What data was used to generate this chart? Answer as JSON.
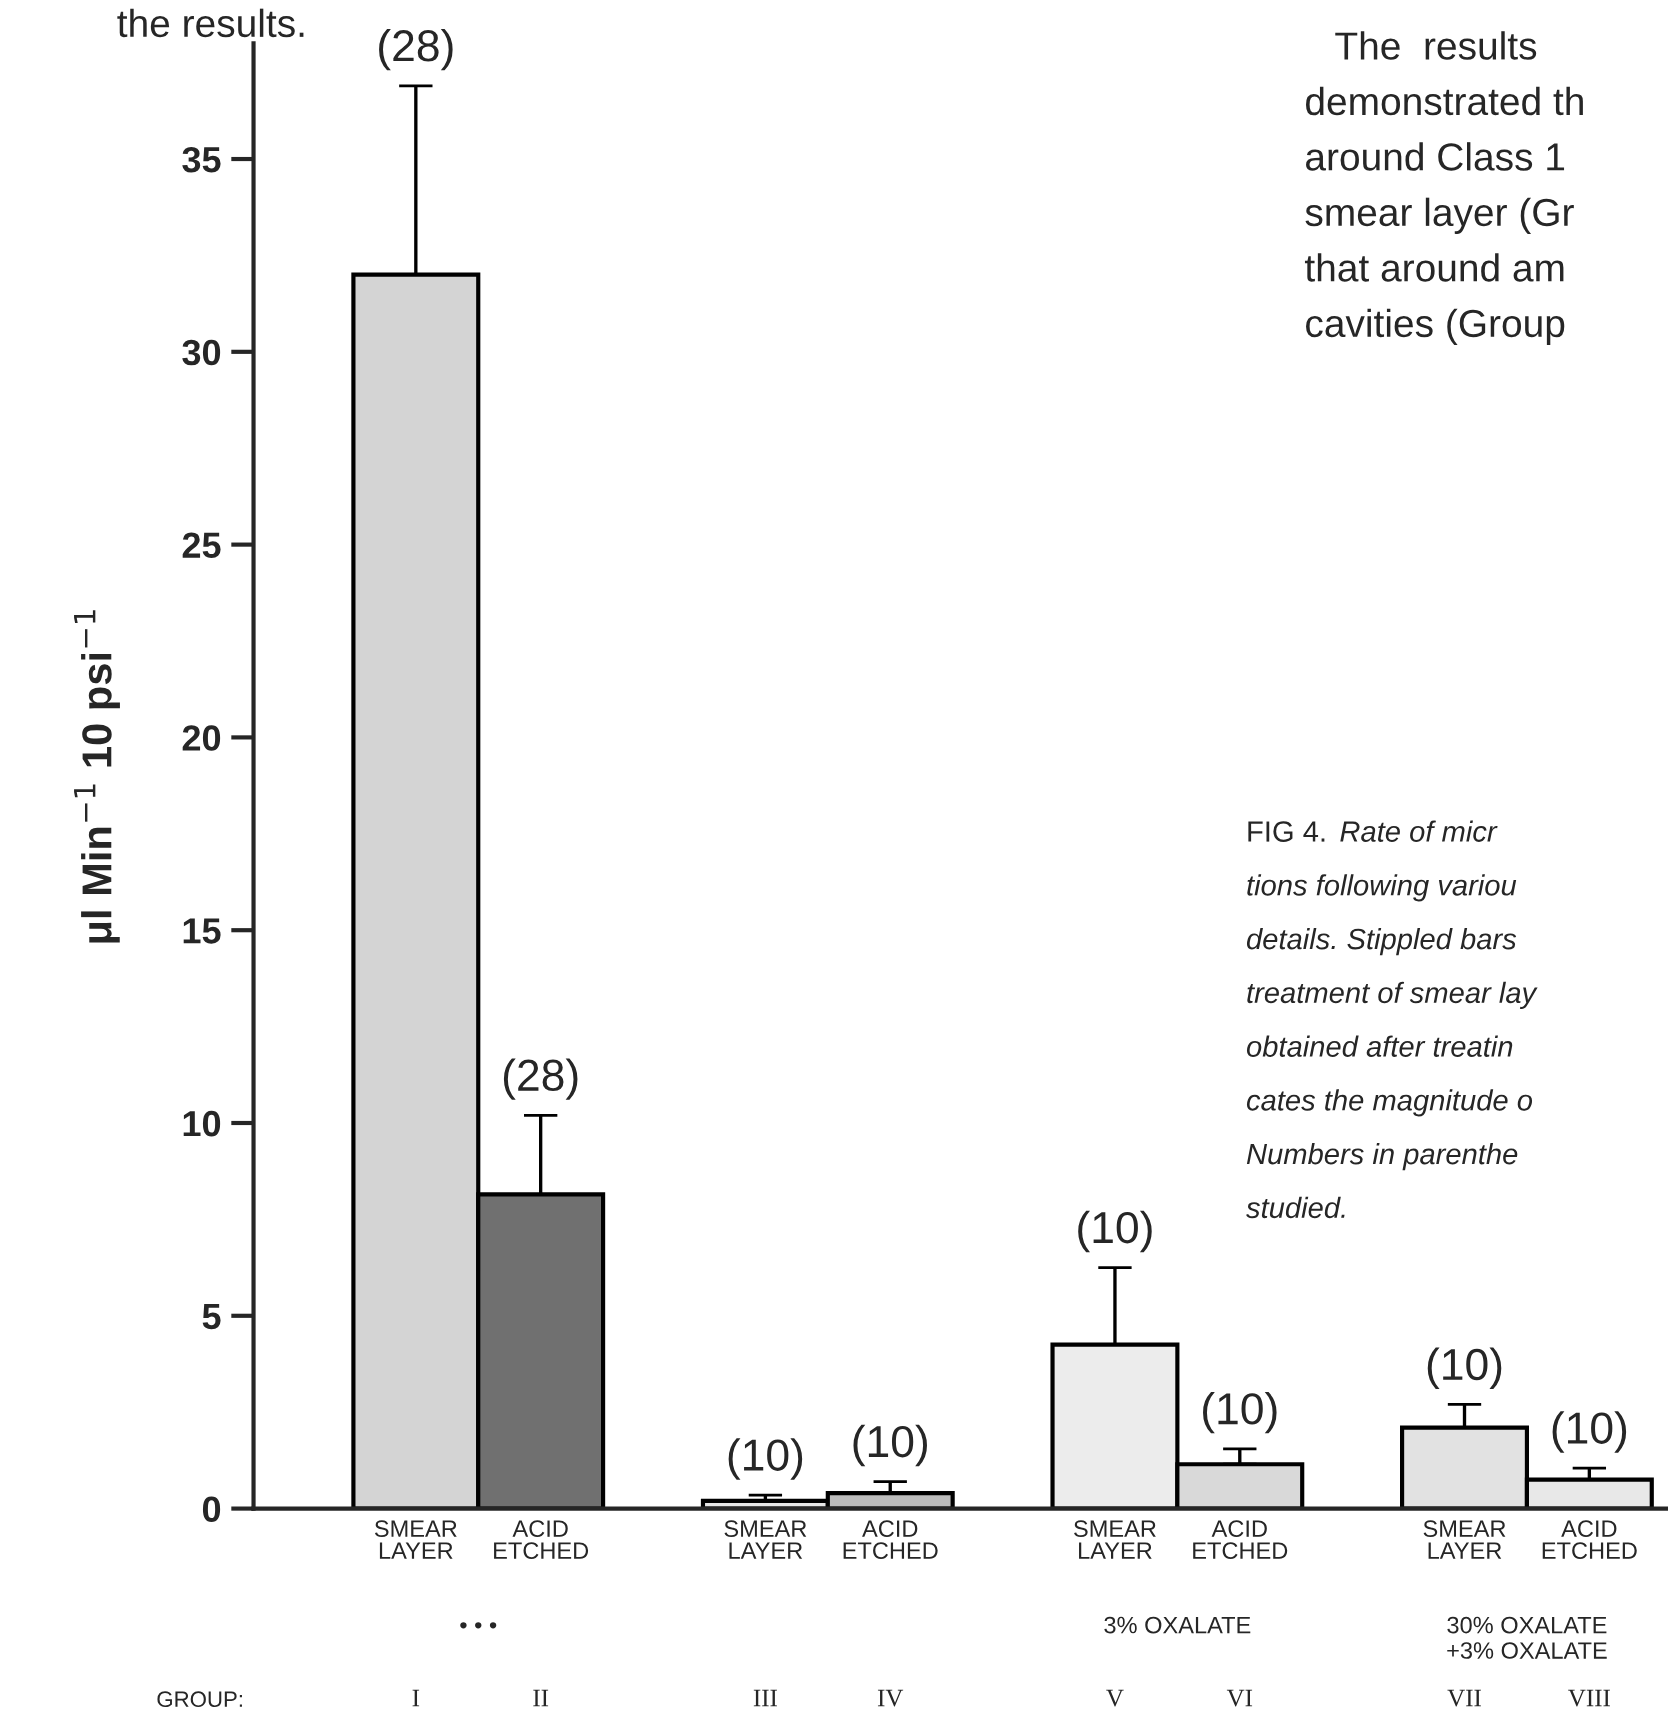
{
  "chart_data": {
    "type": "bar",
    "ylabel": "μl Min$^{−1}$ 10 psi$^{−1}$",
    "categories": [
      "SMEAR\nLAYER",
      "ACID\nETCHED",
      "SMEAR\nLAYER",
      "ACID\nETCHED",
      "SMEAR\nLAYER",
      "ACID\nETCHED",
      "SMEAR\nLAYER",
      "ACID\nETCHED"
    ],
    "values": [
      32.0,
      8.15,
      0.2,
      0.4,
      4.25,
      1.15,
      2.1,
      0.75
    ],
    "colors": [
      "#d4d4d4",
      "#707070",
      "#e6e6e6",
      "#bdbdbd",
      "#ececec",
      "#d9d9d9",
      "#e2e2e2",
      "#e8e8e8"
    ],
    "errors": [
      [
        32.0,
        36.9
      ],
      [
        8.15,
        10.2
      ],
      [
        0.2,
        0.35
      ],
      [
        0.4,
        0.7
      ],
      [
        4.25,
        6.25
      ],
      [
        1.15,
        1.55
      ],
      [
        2.1,
        2.7
      ],
      [
        0.75,
        1.05
      ]
    ],
    "ylim": [
      0,
      38
    ],
    "yticks": [
      0,
      5,
      10,
      15,
      20,
      25,
      30,
      35
    ],
    "grid": false,
    "legend": false,
    "annotations": [
      "(28)",
      "(28)",
      "(10)",
      "(10)",
      "(10)",
      "(10)",
      "(10)",
      "(10)",
      "• • •",
      "3% OXALATE",
      "30% OXALATE\n+3% OXALATE",
      "GROUP:",
      "I",
      "II",
      "III",
      "IV",
      "V",
      "VI",
      "VII",
      "VIII",
      "the results.",
      "The  results",
      "demonstrated th",
      "around Class 1",
      "smear layer (Gr",
      "that around am",
      "cavities (Group",
      "FIG 4.",
      "Rate of micr",
      "tions following variou",
      "details. Stippled bars",
      "treatment of smear lay",
      "obtained after treatin",
      "cates the magnitude o",
      "Numbers in parenthe",
      "studied."
    ]
  }
}
